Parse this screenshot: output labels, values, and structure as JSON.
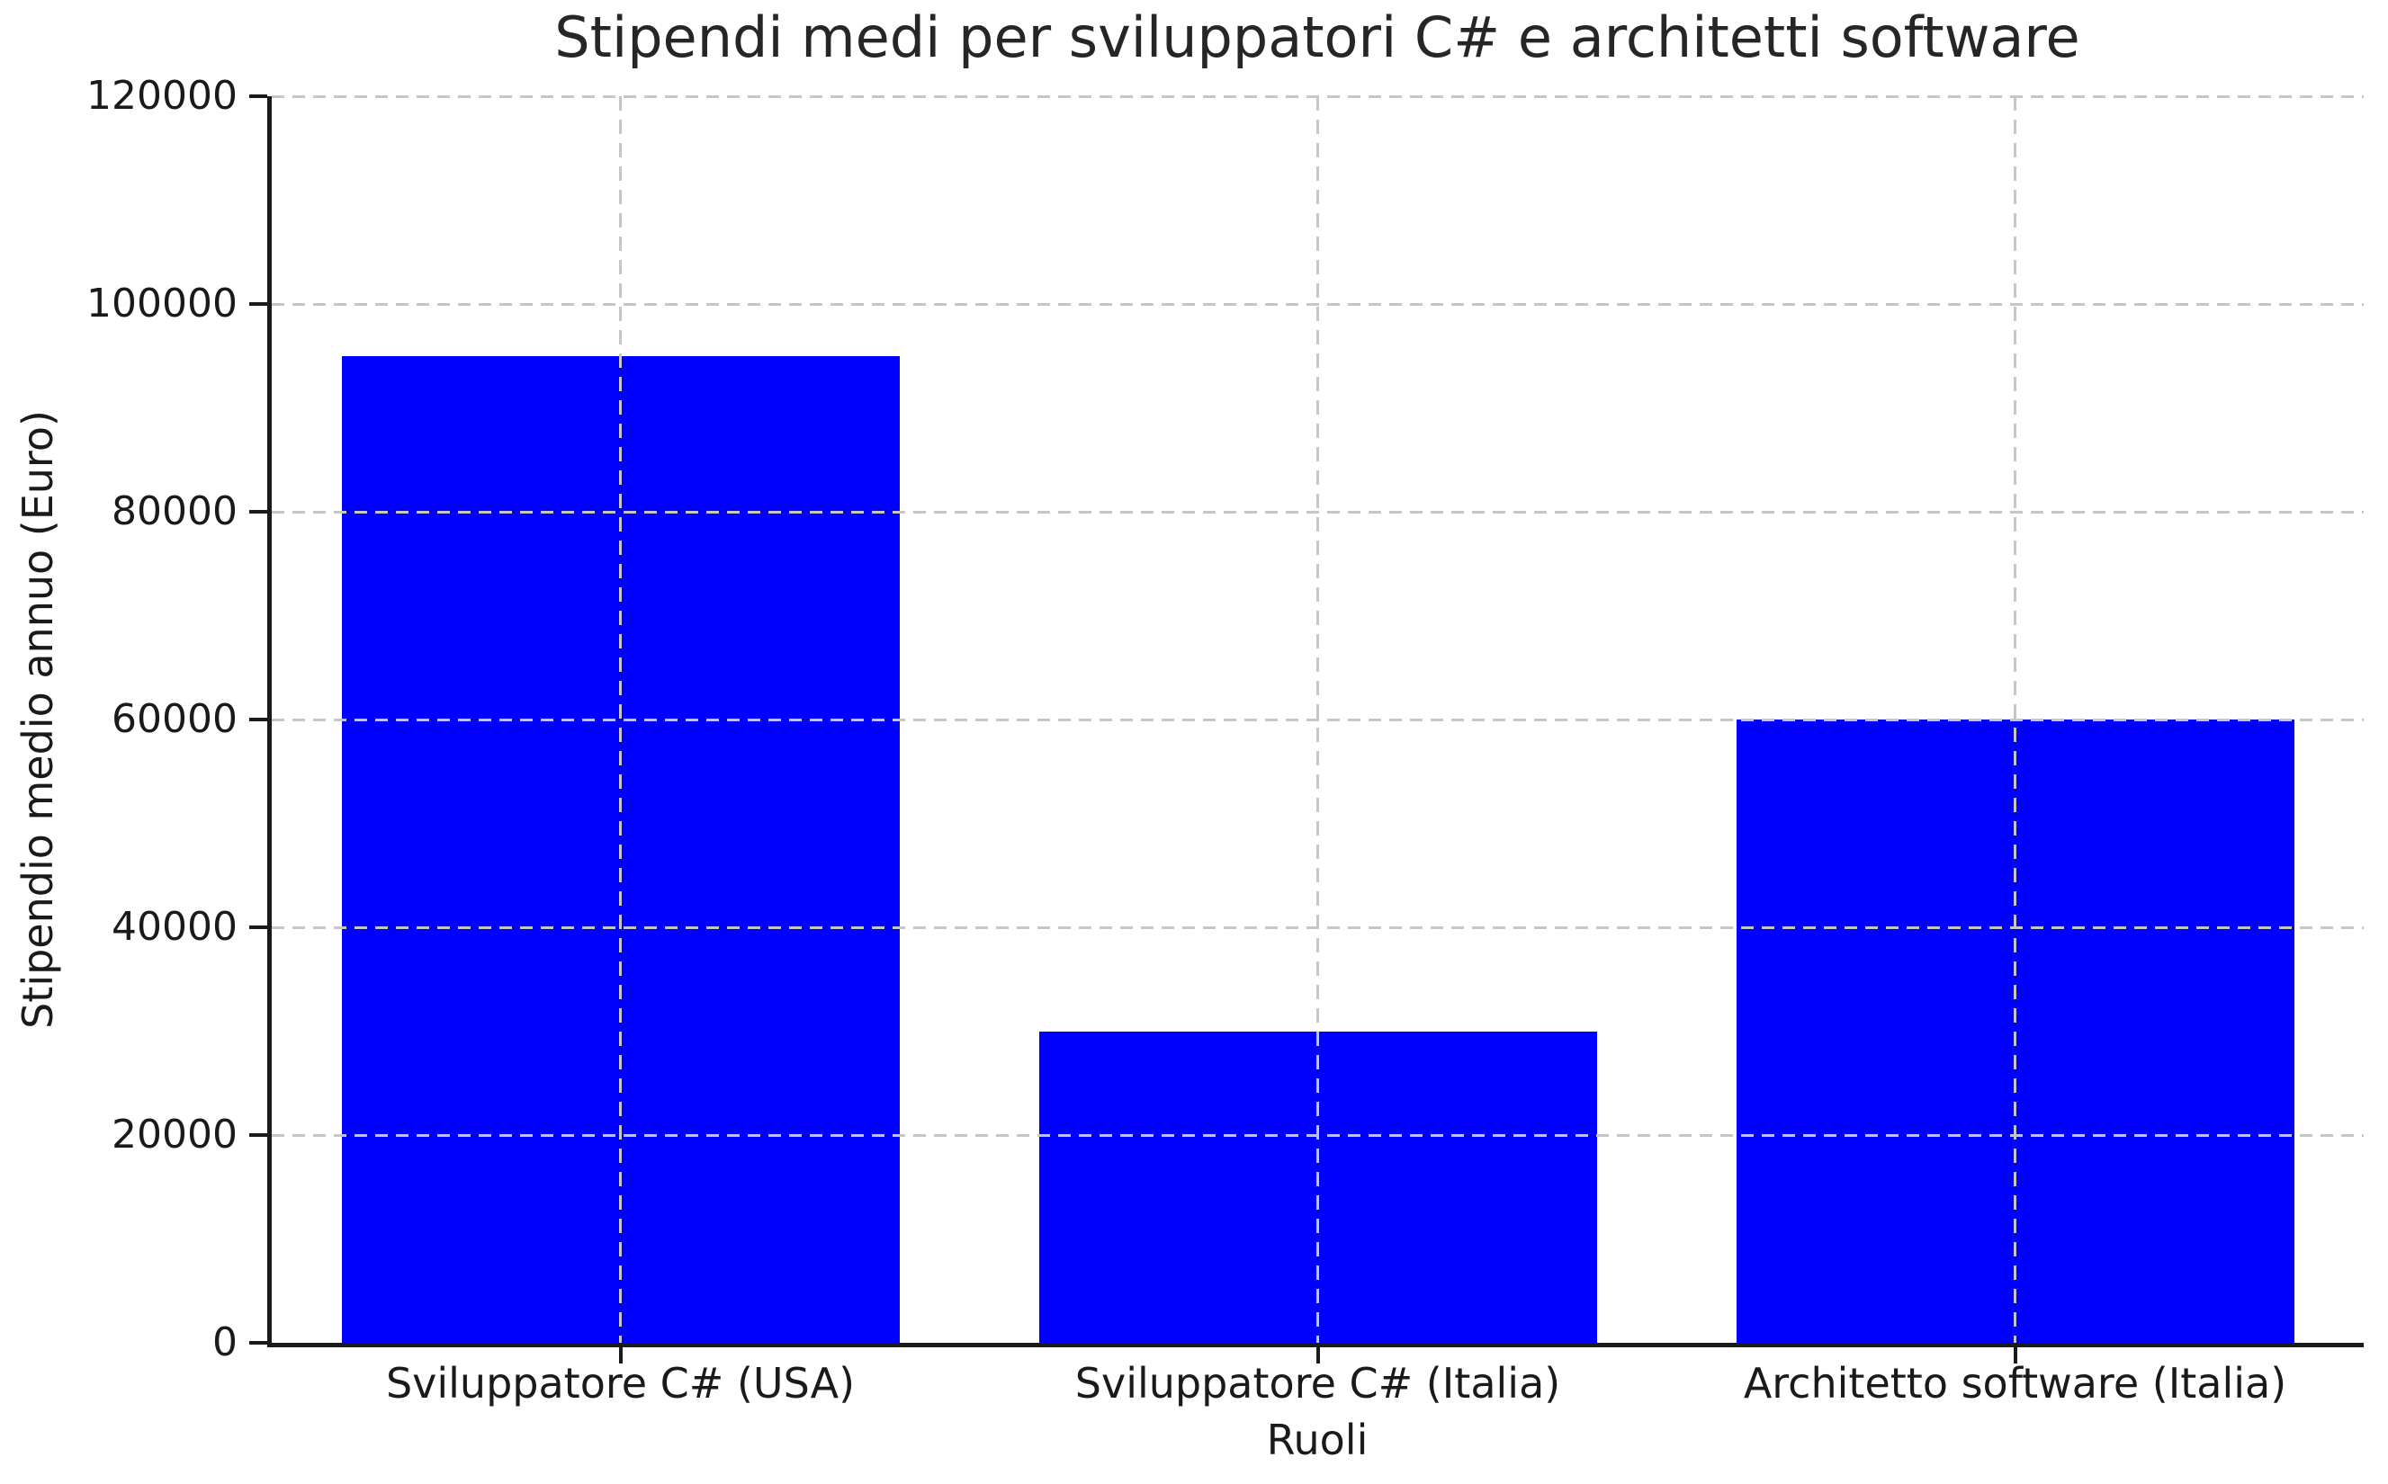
{
  "chart_data": {
    "type": "bar",
    "title": "Stipendi medi per sviluppatori C# e architetti software",
    "xlabel": "Ruoli",
    "ylabel": "Stipendio medio annuo (Euro)",
    "categories": [
      "Sviluppatore C# (USA)",
      "Sviluppatore C# (Italia)",
      "Architetto software (Italia)"
    ],
    "values": [
      95000,
      30000,
      60000
    ],
    "ylim": [
      0,
      120000
    ],
    "yticks": [
      0,
      20000,
      40000,
      60000,
      80000,
      100000,
      120000
    ],
    "bar_color": "#0000ff",
    "grid": "dashed horizontal and vertical",
    "grid_color": "#c6c6c6",
    "legend_position": "none"
  }
}
